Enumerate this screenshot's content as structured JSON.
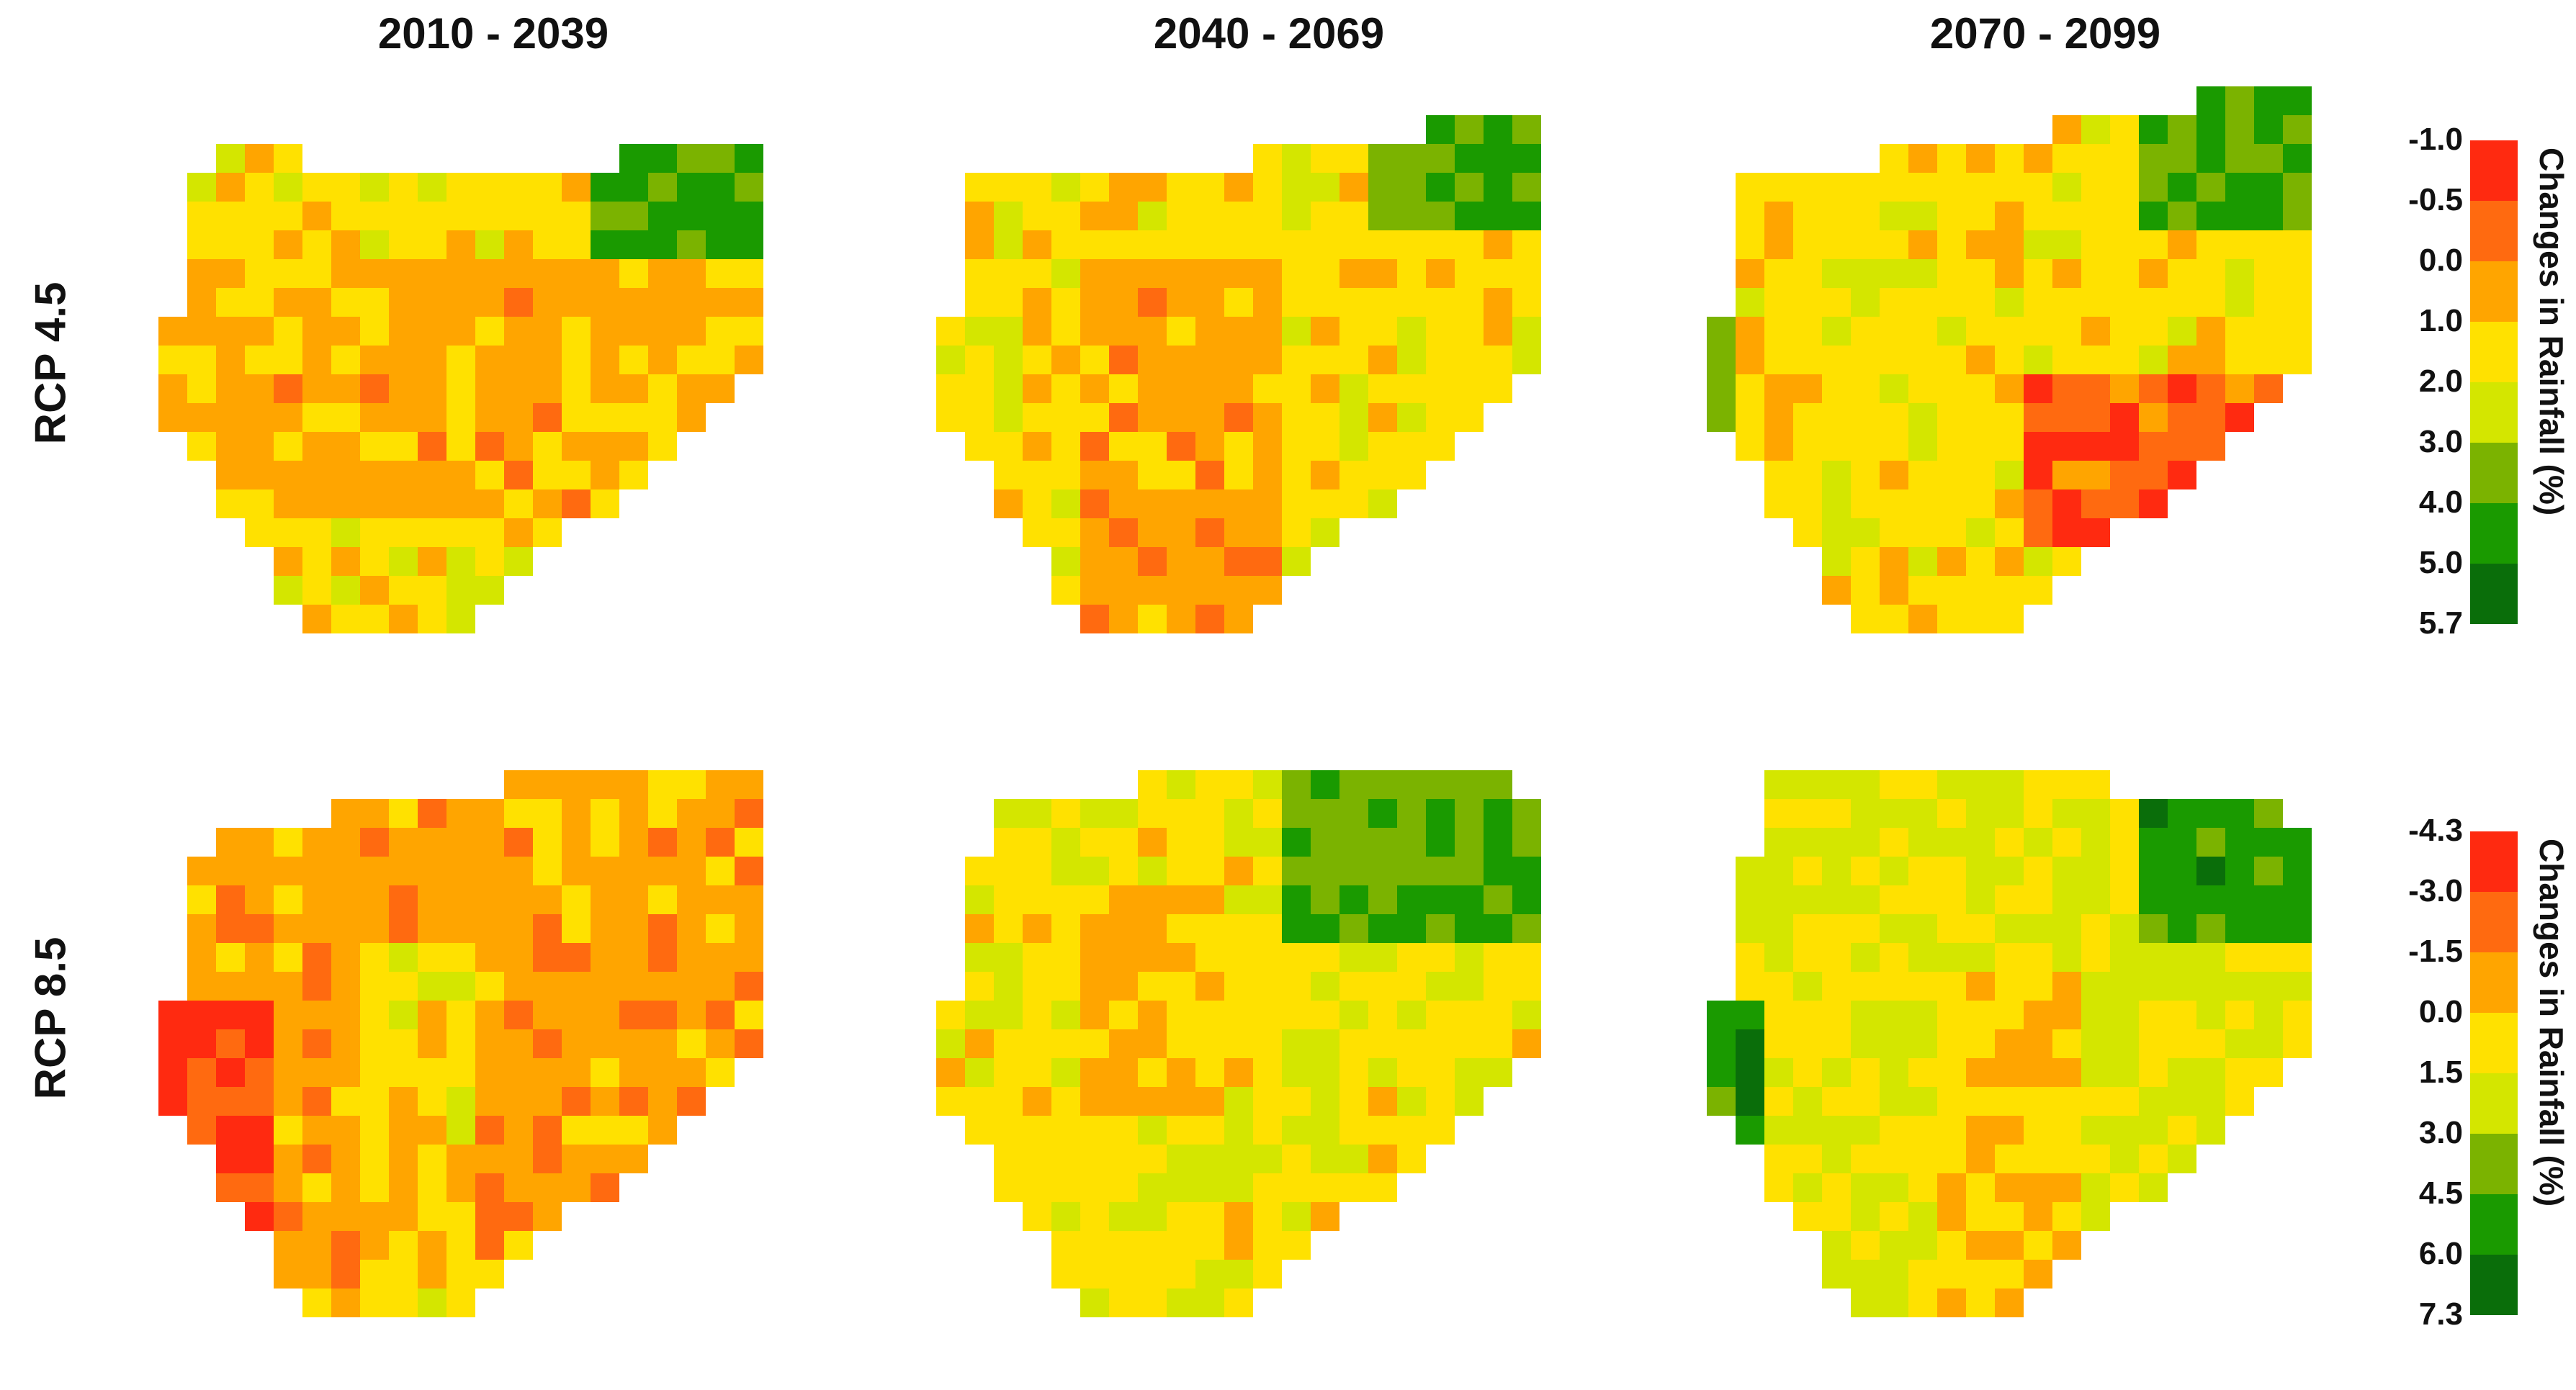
{
  "column_titles": [
    "2010 - 2039",
    "2040 - 2069",
    "2070 - 2099"
  ],
  "row_labels": [
    "RCP 4.5",
    "RCP 8.5"
  ],
  "legends": [
    {
      "label": "Changes in Rainfall (%)",
      "ticks": [
        "-1.0",
        "-0.5",
        "0.0",
        "1.0",
        "2.0",
        "3.0",
        "4.0",
        "5.0",
        "5.7"
      ],
      "colors": [
        "#ff2a10",
        "#ff6a10",
        "#ffa500",
        "#ffe100",
        "#d4e600",
        "#7bb300",
        "#1a9a00",
        "#0a6e0a"
      ]
    },
    {
      "label": "Changes in Rainfall (%)",
      "ticks": [
        "-4.3",
        "-3.0",
        "-1.5",
        "0.0",
        "1.5",
        "3.0",
        "4.5",
        "6.0",
        "7.3"
      ],
      "colors": [
        "#ff2a10",
        "#ff6a10",
        "#ffa500",
        "#ffe100",
        "#d4e600",
        "#7bb300",
        "#1a9a00",
        "#0a6e0a"
      ]
    }
  ]
}
